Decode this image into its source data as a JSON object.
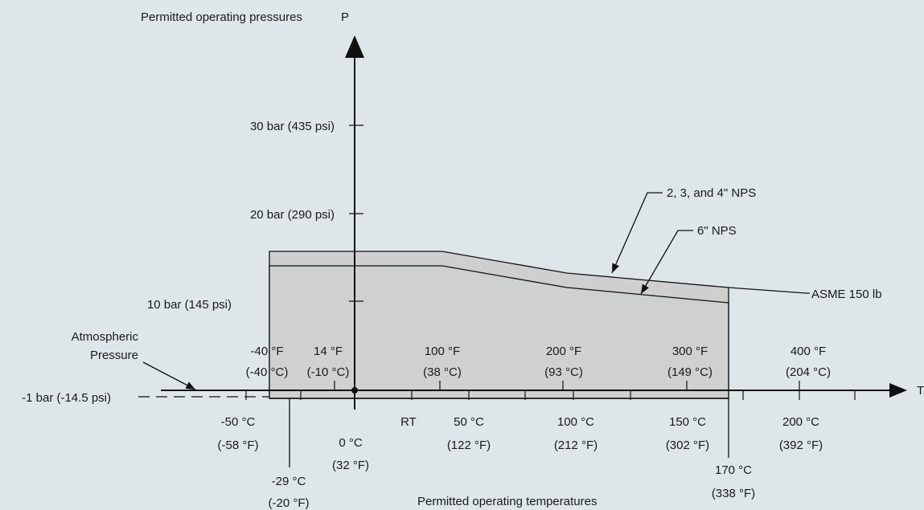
{
  "colors": {
    "background": "#dfe6ea",
    "region_outer": "#cfcfcf",
    "region_inner": "#cfd0d0",
    "line": "#111111"
  },
  "axes": {
    "p_axis_title": "Permitted operating pressures",
    "p_symbol": "P",
    "t_axis_title": "Permitted operating temperatures",
    "t_symbol": "T"
  },
  "pressure_labels": [
    "30 bar (435 psi)",
    "20 bar (290 psi)",
    "10 bar (145 psi)",
    "-1 bar (-14.5 psi)"
  ],
  "atmospheric": {
    "line1": "Atmospheric",
    "line2": "Pressure"
  },
  "fahrenheit_labels": [
    {
      "f": "-40 °F",
      "c": "(-40 °C)"
    },
    {
      "f": "14 °F",
      "c": "(-10 °C)"
    },
    {
      "f": "100 °F",
      "c": "(38 °C)"
    },
    {
      "f": "200 °F",
      "c": "(93 °C)"
    },
    {
      "f": "300 °F",
      "c": "(149 °C)"
    },
    {
      "f": "400 °F",
      "c": "(204 °C)"
    }
  ],
  "celsius_labels": [
    {
      "c": "-50 °C",
      "f": "(-58 °F)"
    },
    {
      "c": "0 °C",
      "f": "(32 °F)"
    },
    {
      "c": "50 °C",
      "f": "(122 °F)"
    },
    {
      "c": "100 °C",
      "f": "(212 °F)"
    },
    {
      "c": "150 °C",
      "f": "(302 °F)"
    },
    {
      "c": "200 °C",
      "f": "(392 °F)"
    }
  ],
  "rt_label": "RT",
  "low_limit": {
    "c": "-29 °C",
    "f": "(-20 °F)"
  },
  "high_limit": {
    "c": "170 °C",
    "f": "(338 °F)"
  },
  "curve_labels": {
    "nps_small": "2, 3, and 4\" NPS",
    "nps_large": "6\" NPS",
    "asme": "ASME 150 lb"
  }
}
